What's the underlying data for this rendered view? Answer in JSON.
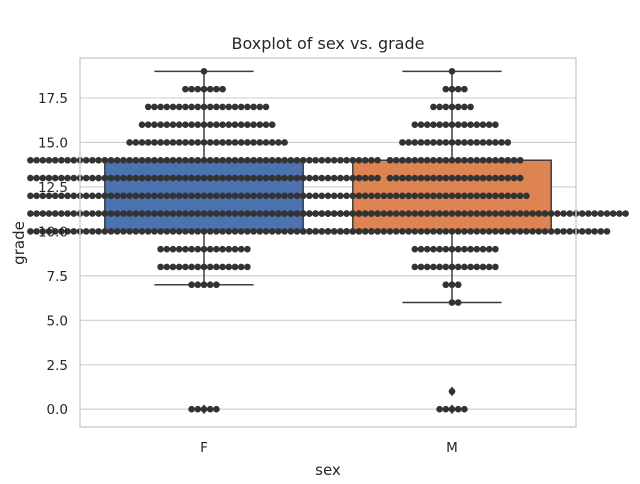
{
  "chart_data": {
    "type": "boxplot",
    "title": "Boxplot of sex vs. grade",
    "xlabel": "sex",
    "ylabel": "grade",
    "ylim": [
      -1,
      19.75
    ],
    "yticks": [
      0.0,
      2.5,
      5.0,
      7.5,
      10.0,
      12.5,
      15.0,
      17.5
    ],
    "ytick_labels": [
      "0.0",
      "2.5",
      "5.0",
      "7.5",
      "10.0",
      "12.5",
      "15.0",
      "17.5"
    ],
    "grid": true,
    "categories": [
      "F",
      "M"
    ],
    "colors": [
      "#4c72b0",
      "#dd8452"
    ],
    "boxes": [
      {
        "category": "F",
        "q1": 10,
        "median": 12,
        "q3": 14,
        "whisker_low": 7,
        "whisker_high": 19,
        "outliers": [
          0
        ]
      },
      {
        "category": "M",
        "q1": 10,
        "median": 11,
        "q3": 14,
        "whisker_low": 6,
        "whisker_high": 19,
        "outliers": [
          0,
          1
        ]
      }
    ],
    "swarm": [
      {
        "category": "F",
        "counts": {
          "0": 5,
          "7": 5,
          "8": 15,
          "9": 15,
          "10": 57,
          "11": 57,
          "12": 57,
          "13": 57,
          "14": 57,
          "15": 26,
          "16": 22,
          "17": 20,
          "18": 7,
          "19": 1
        }
      },
      {
        "category": "M",
        "counts": {
          "0": 5,
          "1": 1,
          "6": 2,
          "7": 3,
          "8": 14,
          "9": 14,
          "10": 50,
          "11": 57,
          "12": 24,
          "13": 22,
          "14": 22,
          "15": 18,
          "16": 14,
          "17": 7,
          "18": 4,
          "19": 1
        }
      }
    ]
  }
}
